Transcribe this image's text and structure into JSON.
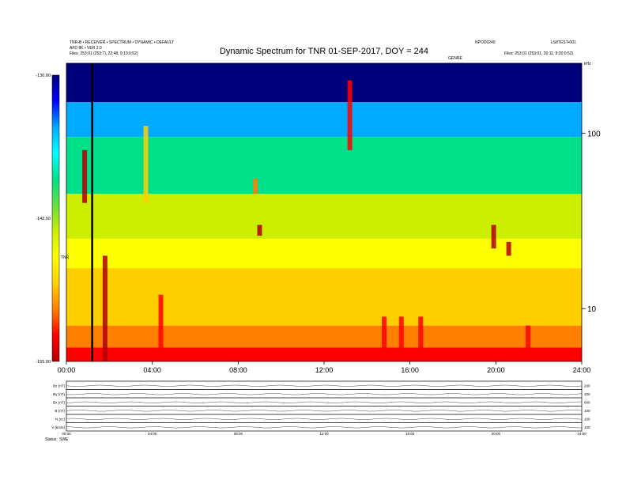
{
  "title": "Dynamic Spectrum for TNR 01-SEP-2017, DOY = 244",
  "header": {
    "left_line1": "TNR-B • RECEIVER • SPECTRUM • DYNAMIC • DEFAULT",
    "left_line2": "AFD 8K • VER 2.0",
    "left_line3": "Files:    253:01 (253:7), 22:48, 9:13:0:52)",
    "right_line1": "NPOD0240",
    "right_line1b": "LS8TEST•001",
    "right_line2": "Files: 253:01 (253:01, 20:11, 9:20:0:52)",
    "mid_label": "GENRE",
    "right_line2_tail": "kHz"
  },
  "colorbar": {
    "ticks": [
      "-130.00",
      "-142.50",
      "-155.00"
    ],
    "label": "TNR"
  },
  "chart_data": {
    "type": "heatmap",
    "title": "Dynamic Spectrum for TNR 01-SEP-2017, DOY = 244",
    "xlabel": "",
    "ylabel": "",
    "x_ticks": [
      "00:00",
      "04:00",
      "08:00",
      "12:00",
      "16:00",
      "20:00",
      "24:00"
    ],
    "x_range_hours": [
      0,
      24
    ],
    "y_scale": "log",
    "y_ticks": [
      100,
      10
    ],
    "y_unit": "kHz",
    "y_range_khz": [
      5,
      250
    ],
    "color_range": [
      -155.0,
      -130.0
    ],
    "colormap": [
      "#00007a",
      "#0000ff",
      "#00aaff",
      "#00ffff",
      "#00e08a",
      "#66e040",
      "#ccee00",
      "#ffff00",
      "#ffd000",
      "#ff8000",
      "#ff0000",
      "#b00000"
    ],
    "marker_line_hour": 1.2,
    "bands": [
      {
        "from_khz": 150,
        "to_khz": 250,
        "level": -131.0
      },
      {
        "from_khz": 95,
        "to_khz": 150,
        "level": -133.5
      },
      {
        "from_khz": 45,
        "to_khz": 95,
        "level": -138.5
      },
      {
        "from_khz": 25,
        "to_khz": 45,
        "level": -142.5
      },
      {
        "from_khz": 17,
        "to_khz": 25,
        "level": -145.5
      },
      {
        "from_khz": 8,
        "to_khz": 17,
        "level": -148.5
      },
      {
        "from_khz": 6,
        "to_khz": 8,
        "level": -151.0
      },
      {
        "from_khz": 5,
        "to_khz": 6,
        "level": -153.5
      }
    ],
    "bursts": [
      {
        "hour": 0.85,
        "from_khz": 40,
        "to_khz": 80,
        "level": -154.0
      },
      {
        "hour": 1.8,
        "from_khz": 5,
        "to_khz": 20,
        "level": -154.0
      },
      {
        "hour": 3.7,
        "from_khz": 40,
        "to_khz": 110,
        "level": -148.0
      },
      {
        "hour": 4.4,
        "from_khz": 5,
        "to_khz": 12,
        "level": -153.0
      },
      {
        "hour": 8.8,
        "from_khz": 45,
        "to_khz": 55,
        "level": -151.0
      },
      {
        "hour": 9.0,
        "from_khz": 26,
        "to_khz": 30,
        "level": -154.0
      },
      {
        "hour": 13.2,
        "from_khz": 80,
        "to_khz": 200,
        "level": -153.0
      },
      {
        "hour": 14.8,
        "from_khz": 5,
        "to_khz": 9,
        "level": -153.0
      },
      {
        "hour": 15.6,
        "from_khz": 5,
        "to_khz": 9,
        "level": -153.5
      },
      {
        "hour": 16.5,
        "from_khz": 5,
        "to_khz": 9,
        "level": -152.5
      },
      {
        "hour": 19.9,
        "from_khz": 22,
        "to_khz": 30,
        "level": -154.0
      },
      {
        "hour": 20.6,
        "from_khz": 20,
        "to_khz": 24,
        "level": -154.5
      },
      {
        "hour": 21.5,
        "from_khz": 5,
        "to_khz": 8,
        "level": -152.0
      }
    ]
  },
  "lower_panel": {
    "left_labels": [
      "Bz (nT)",
      "By (nT)",
      "Bx (nT)",
      "B (nT)",
      "N (cc)",
      "V (km/s)"
    ],
    "right_labels": [
      "200",
      "100",
      "000",
      "100",
      "100",
      "100"
    ],
    "x_ticks": [
      "00:00",
      "04:00",
      "08:00",
      "12:00",
      "16:00",
      "20:00",
      "24:00"
    ],
    "footer_left": "Status",
    "footer_left2": "SWE"
  }
}
